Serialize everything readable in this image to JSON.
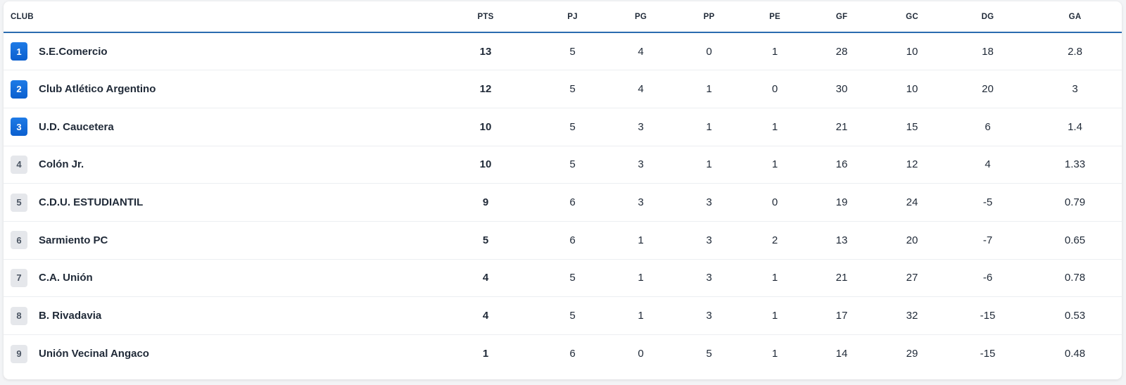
{
  "columns": {
    "club": "CLUB",
    "pts": "PTS",
    "pj": "PJ",
    "pg": "PG",
    "pp": "PP",
    "pe": "PE",
    "gf": "GF",
    "gc": "GC",
    "dg": "DG",
    "ga": "GA"
  },
  "colors": {
    "accent": "#1e7be6",
    "header_rule": "#2b6cb0",
    "neutral_badge": "#e5e7eb"
  },
  "rows": [
    {
      "pos": "1",
      "club": "S.E.Comercio",
      "highlight": true,
      "pts": "13",
      "pj": "5",
      "pg": "4",
      "pp": "0",
      "pe": "1",
      "gf": "28",
      "gc": "10",
      "dg": "18",
      "ga": "2.8"
    },
    {
      "pos": "2",
      "club": "Club Atlético Argentino",
      "highlight": true,
      "pts": "12",
      "pj": "5",
      "pg": "4",
      "pp": "1",
      "pe": "0",
      "gf": "30",
      "gc": "10",
      "dg": "20",
      "ga": "3"
    },
    {
      "pos": "3",
      "club": "U.D. Caucetera",
      "highlight": true,
      "pts": "10",
      "pj": "5",
      "pg": "3",
      "pp": "1",
      "pe": "1",
      "gf": "21",
      "gc": "15",
      "dg": "6",
      "ga": "1.4"
    },
    {
      "pos": "4",
      "club": "Colón Jr.",
      "highlight": false,
      "pts": "10",
      "pj": "5",
      "pg": "3",
      "pp": "1",
      "pe": "1",
      "gf": "16",
      "gc": "12",
      "dg": "4",
      "ga": "1.33"
    },
    {
      "pos": "5",
      "club": "C.D.U. ESTUDIANTIL",
      "highlight": false,
      "pts": "9",
      "pj": "6",
      "pg": "3",
      "pp": "3",
      "pe": "0",
      "gf": "19",
      "gc": "24",
      "dg": "-5",
      "ga": "0.79"
    },
    {
      "pos": "6",
      "club": "Sarmiento PC",
      "highlight": false,
      "pts": "5",
      "pj": "6",
      "pg": "1",
      "pp": "3",
      "pe": "2",
      "gf": "13",
      "gc": "20",
      "dg": "-7",
      "ga": "0.65"
    },
    {
      "pos": "7",
      "club": "C.A. Unión",
      "highlight": false,
      "pts": "4",
      "pj": "5",
      "pg": "1",
      "pp": "3",
      "pe": "1",
      "gf": "21",
      "gc": "27",
      "dg": "-6",
      "ga": "0.78"
    },
    {
      "pos": "8",
      "club": "B. Rivadavia",
      "highlight": false,
      "pts": "4",
      "pj": "5",
      "pg": "1",
      "pp": "3",
      "pe": "1",
      "gf": "17",
      "gc": "32",
      "dg": "-15",
      "ga": "0.53"
    },
    {
      "pos": "9",
      "club": "Unión Vecinal Angaco",
      "highlight": false,
      "pts": "1",
      "pj": "6",
      "pg": "0",
      "pp": "5",
      "pe": "1",
      "gf": "14",
      "gc": "29",
      "dg": "-15",
      "ga": "0.48"
    }
  ]
}
